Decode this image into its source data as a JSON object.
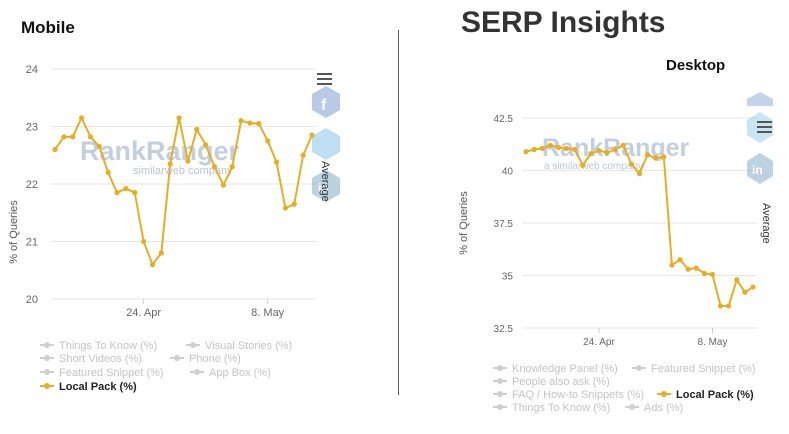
{
  "headings": {
    "mobile": "Mobile",
    "serp": "SERP Insights",
    "desktop": "Desktop"
  },
  "watermark": {
    "brand": "RankRanger",
    "sub": "similarweb company",
    "sub_desktop": "a similarweb company"
  },
  "colors": {
    "series": "#e8ad21",
    "inactive": "#c4c4c4",
    "grid": "#e6e6e6"
  },
  "chart_data": [
    {
      "id": "mobile",
      "type": "line",
      "title": "Mobile",
      "ylabel": "% of Queries",
      "ylim": [
        20,
        24
      ],
      "yticks": [
        20,
        21,
        22,
        23,
        24
      ],
      "xticks": [
        {
          "label": "24. Apr",
          "index": 10
        },
        {
          "label": "8. May",
          "index": 24
        }
      ],
      "side_label": "Average",
      "series": [
        {
          "name": "Local Pack (%)",
          "values": [
            22.6,
            22.82,
            22.82,
            23.15,
            22.82,
            22.65,
            22.2,
            21.85,
            21.92,
            21.85,
            21.0,
            20.6,
            20.8,
            22.35,
            23.15,
            22.4,
            22.95,
            22.68,
            22.3,
            21.98,
            22.3,
            23.1,
            23.06,
            23.05,
            22.75,
            22.38,
            21.58,
            21.65,
            22.5,
            22.85
          ]
        }
      ],
      "legend": [
        {
          "label": "Things To Know (%)",
          "active": false
        },
        {
          "label": "Visual Stories (%)",
          "active": false
        },
        {
          "label": "Short Videos (%)",
          "active": false
        },
        {
          "label": "Phone (%)",
          "active": false
        },
        {
          "label": "Featured Snippet (%)",
          "active": false
        },
        {
          "label": "App Box (%)",
          "active": false
        },
        {
          "label": "Local Pack (%)",
          "active": true
        }
      ]
    },
    {
      "id": "desktop",
      "type": "line",
      "title": "Desktop",
      "ylabel": "% of Queries",
      "ylim": [
        32.5,
        42.5
      ],
      "yticks": [
        32.5,
        35,
        37.5,
        40,
        42.5
      ],
      "ytick_labels": [
        "32.5",
        "35",
        "37.5",
        "40",
        "42.5"
      ],
      "xticks": [
        {
          "label": "24. Apr",
          "index": 9
        },
        {
          "label": "8. May",
          "index": 23
        }
      ],
      "side_label": "Average",
      "series": [
        {
          "name": "Local Pack (%)",
          "values": [
            40.9,
            41.0,
            41.05,
            41.2,
            41.1,
            41.05,
            41.0,
            40.25,
            40.8,
            40.95,
            40.85,
            41.0,
            41.2,
            40.3,
            39.85,
            40.75,
            40.6,
            40.65,
            35.5,
            35.75,
            35.3,
            35.35,
            35.1,
            35.05,
            33.55,
            33.55,
            34.8,
            34.2,
            34.45
          ]
        }
      ],
      "legend": [
        {
          "label": "Knowledge Panel (%)",
          "active": false
        },
        {
          "label": "Featured Snippet (%)",
          "active": false
        },
        {
          "label": "People also ask (%)",
          "active": false
        },
        {
          "label": "FAQ / How-to Snippets (%)",
          "active": false
        },
        {
          "label": "Local Pack (%)",
          "active": true
        },
        {
          "label": "Things To Know (%)",
          "active": false
        },
        {
          "label": "Ads (%)",
          "active": false
        }
      ]
    }
  ]
}
